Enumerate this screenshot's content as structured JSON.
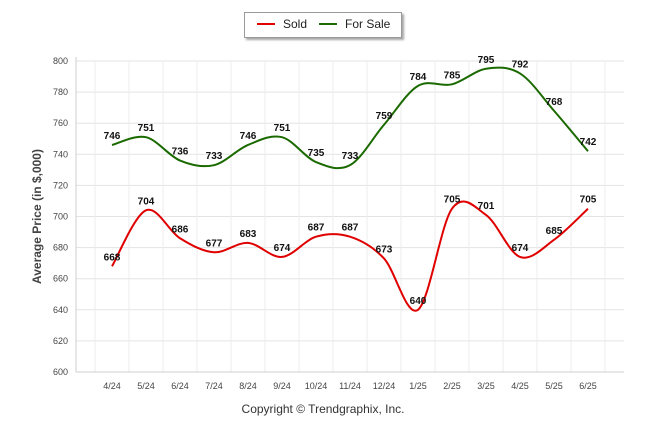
{
  "chart_data": {
    "type": "line",
    "ylabel": "Average Price (in $,000)",
    "xlabel": "",
    "ylim": [
      600,
      800
    ],
    "yticks": [
      600,
      620,
      640,
      660,
      680,
      700,
      720,
      740,
      760,
      780,
      800
    ],
    "categories": [
      "4/24",
      "5/24",
      "6/24",
      "7/24",
      "8/24",
      "9/24",
      "10/24",
      "11/24",
      "12/24",
      "1/25",
      "2/25",
      "3/25",
      "4/25",
      "5/25",
      "6/25"
    ],
    "grid": true,
    "legend_position": "top-center",
    "series": [
      {
        "name": "Sold",
        "color": "#e00000",
        "values": [
          668,
          704,
          686,
          677,
          683,
          674,
          687,
          687,
          673,
          640,
          705,
          701,
          674,
          685,
          705
        ]
      },
      {
        "name": "For Sale",
        "color": "#1a6a00",
        "values": [
          746,
          751,
          736,
          733,
          746,
          751,
          735,
          733,
          759,
          784,
          785,
          795,
          792,
          768,
          742
        ]
      }
    ]
  },
  "legend": {
    "sold_label": "Sold",
    "forsale_label": "For Sale"
  },
  "footer": {
    "copyright": "Copyright © Trendgraphix, Inc."
  }
}
